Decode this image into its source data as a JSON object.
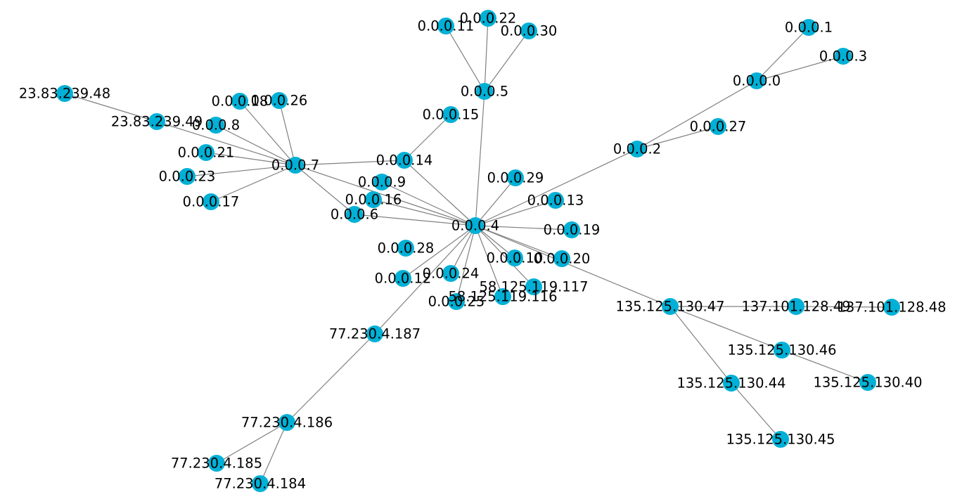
{
  "graph": {
    "node_color": "#00b0d6",
    "edge_color": "#808080",
    "label_color": "#000000",
    "nodes": [
      {
        "id": "0.0.0.0"
      },
      {
        "id": "0.0.0.1"
      },
      {
        "id": "0.0.0.3"
      },
      {
        "id": "0.0.0.2"
      },
      {
        "id": "0.0.0.27"
      },
      {
        "id": "0.0.0.4"
      },
      {
        "id": "0.0.0.5"
      },
      {
        "id": "0.0.0.11"
      },
      {
        "id": "0.0.0.22"
      },
      {
        "id": "0.0.0.30"
      },
      {
        "id": "0.0.0.15"
      },
      {
        "id": "0.0.0.14"
      },
      {
        "id": "0.0.0.7"
      },
      {
        "id": "0.0.0.18"
      },
      {
        "id": "0.0.0.26"
      },
      {
        "id": "0.0.0.8"
      },
      {
        "id": "23.83.239.49"
      },
      {
        "id": "23.83.239.48"
      },
      {
        "id": "0.0.0.21"
      },
      {
        "id": "0.0.0.23"
      },
      {
        "id": "0.0.0.17"
      },
      {
        "id": "0.0.0.9"
      },
      {
        "id": "0.0.0.16"
      },
      {
        "id": "0.0.0.6"
      },
      {
        "id": "0.0.0.29"
      },
      {
        "id": "0.0.0.13"
      },
      {
        "id": "0.0.0.19"
      },
      {
        "id": "0.0.0.20"
      },
      {
        "id": "0.0.0.10"
      },
      {
        "id": "0.0.0.28"
      },
      {
        "id": "0.0.0.24"
      },
      {
        "id": "0.0.0.12"
      },
      {
        "id": "0.0.0.25"
      },
      {
        "id": "58.125.119.116"
      },
      {
        "id": "58.125.119.117"
      },
      {
        "id": "135.125.130.47"
      },
      {
        "id": "137.101.128.49"
      },
      {
        "id": "137.101.128.48"
      },
      {
        "id": "135.125.130.46"
      },
      {
        "id": "135.125.130.40"
      },
      {
        "id": "135.125.130.44"
      },
      {
        "id": "135.125.130.45"
      },
      {
        "id": "77.230.4.187"
      },
      {
        "id": "77.230.4.186"
      },
      {
        "id": "77.230.4.185"
      },
      {
        "id": "77.230.4.184"
      }
    ],
    "edges": [
      [
        "0.0.0.0",
        "0.0.0.1"
      ],
      [
        "0.0.0.0",
        "0.0.0.3"
      ],
      [
        "0.0.0.0",
        "0.0.0.2"
      ],
      [
        "0.0.0.2",
        "0.0.0.27"
      ],
      [
        "0.0.0.2",
        "0.0.0.4"
      ],
      [
        "0.0.0.5",
        "0.0.0.11"
      ],
      [
        "0.0.0.5",
        "0.0.0.22"
      ],
      [
        "0.0.0.5",
        "0.0.0.30"
      ],
      [
        "0.0.0.5",
        "0.0.0.4"
      ],
      [
        "0.0.0.15",
        "0.0.0.14"
      ],
      [
        "0.0.0.7",
        "0.0.0.14"
      ],
      [
        "0.0.0.7",
        "0.0.0.18"
      ],
      [
        "0.0.0.7",
        "0.0.0.26"
      ],
      [
        "0.0.0.7",
        "0.0.0.8"
      ],
      [
        "0.0.0.7",
        "23.83.239.49"
      ],
      [
        "23.83.239.49",
        "23.83.239.48"
      ],
      [
        "0.0.0.7",
        "0.0.0.21"
      ],
      [
        "0.0.0.7",
        "0.0.0.23"
      ],
      [
        "0.0.0.7",
        "0.0.0.17"
      ],
      [
        "0.0.0.7",
        "0.0.0.4"
      ],
      [
        "0.0.0.7",
        "0.0.0.6"
      ],
      [
        "0.0.0.14",
        "0.0.0.4"
      ],
      [
        "0.0.0.9",
        "0.0.0.4"
      ],
      [
        "0.0.0.16",
        "0.0.0.4"
      ],
      [
        "0.0.0.6",
        "0.0.0.4"
      ],
      [
        "0.0.0.29",
        "0.0.0.4"
      ],
      [
        "0.0.0.13",
        "0.0.0.4"
      ],
      [
        "0.0.0.19",
        "0.0.0.4"
      ],
      [
        "0.0.0.20",
        "0.0.0.4"
      ],
      [
        "0.0.0.10",
        "0.0.0.4"
      ],
      [
        "58.125.119.117",
        "0.0.0.4"
      ],
      [
        "58.125.119.116",
        "0.0.0.4"
      ],
      [
        "0.0.0.25",
        "0.0.0.4"
      ],
      [
        "0.0.0.24",
        "0.0.0.4"
      ],
      [
        "0.0.0.12",
        "0.0.0.4"
      ],
      [
        "77.230.4.187",
        "0.0.0.4"
      ],
      [
        "135.125.130.47",
        "0.0.0.4"
      ],
      [
        "135.125.130.47",
        "137.101.128.49"
      ],
      [
        "137.101.128.49",
        "137.101.128.48"
      ],
      [
        "135.125.130.47",
        "135.125.130.46"
      ],
      [
        "135.125.130.46",
        "135.125.130.40"
      ],
      [
        "135.125.130.47",
        "135.125.130.44"
      ],
      [
        "135.125.130.44",
        "135.125.130.45"
      ],
      [
        "77.230.4.187",
        "77.230.4.186"
      ],
      [
        "77.230.4.186",
        "77.230.4.185"
      ],
      [
        "77.230.4.186",
        "77.230.4.184"
      ]
    ]
  }
}
